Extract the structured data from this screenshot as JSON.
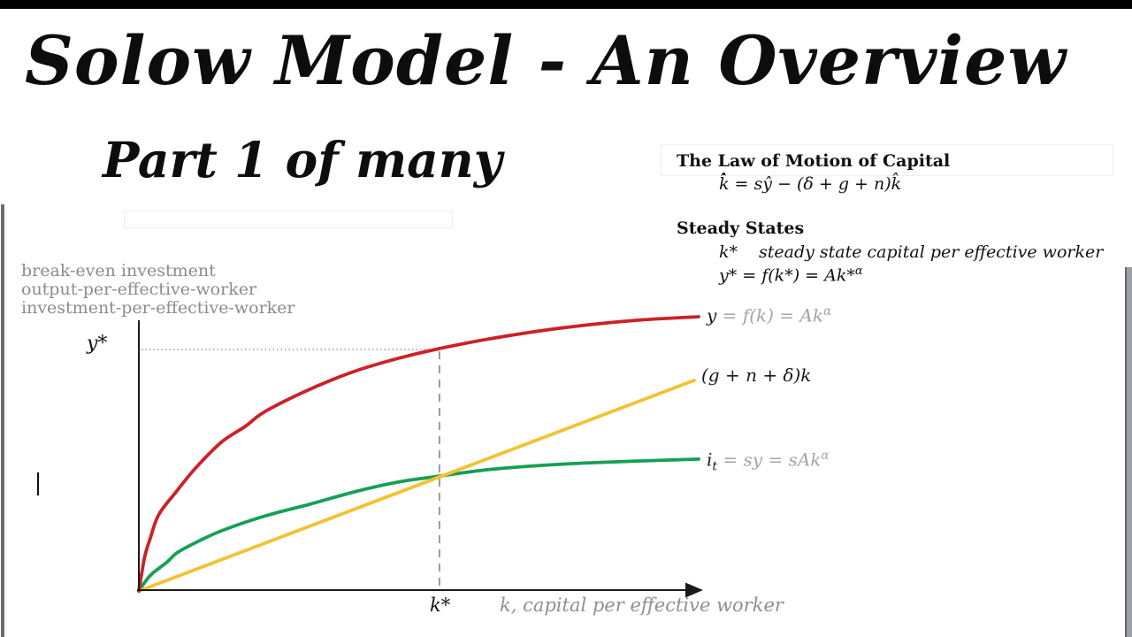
{
  "title": "Solow Model - An Overview",
  "subtitle": "Part 1 of many",
  "law_of_motion": {
    "heading": "The Law of Motion of Capital",
    "equation": "k̂̇ = sŷ − (δ + g + n)k̂"
  },
  "steady_states": {
    "heading": "Steady States",
    "line1_symbol": "k*",
    "line1_text": "steady state capital per effective worker",
    "line2_base": "y* = f(k*) = Ak*",
    "line2_sup": "α"
  },
  "chart": {
    "y_axis_labels": [
      "break-even investment",
      "output-per-effective-worker",
      "investment-per-effective-worker"
    ],
    "y_star_label": "y*",
    "k_star_label": "k*",
    "x_axis_label": "k,  capital per effective worker",
    "labels": {
      "red": {
        "sym": "y",
        "rest": " = f(k) = Ak",
        "sup": "α"
      },
      "yellow": {
        "text": "(g + n + δ)k"
      },
      "green": {
        "sym": "i",
        "sub": "t",
        "rest": " = sy = sAk",
        "sup": "α"
      }
    }
  },
  "chart_data": {
    "type": "line",
    "title": "",
    "xlabel": "k,  capital per effective worker",
    "ylabel_lines": [
      "break-even investment",
      "output-per-effective-worker",
      "investment-per-effective-worker"
    ],
    "axes_numeric": false,
    "x_range_normalized": [
      0,
      1
    ],
    "y_range_normalized": [
      0,
      1
    ],
    "grid": false,
    "legend_position": "labels at right ends of curves",
    "series": [
      {
        "id": "red",
        "name": "y = f(k) = Ak^α",
        "color": "#cc2127",
        "x": [
          0,
          0.01,
          0.02,
          0.036,
          0.068,
          0.1,
          0.147,
          0.19,
          0.226,
          0.305,
          0.384,
          0.463,
          0.537,
          0.637,
          0.763,
          0.889,
          1.0
        ],
        "y": [
          0,
          0.12,
          0.19,
          0.28,
          0.365,
          0.445,
          0.542,
          0.6,
          0.655,
          0.735,
          0.8,
          0.848,
          0.884,
          0.923,
          0.961,
          0.987,
          1.0
        ]
      },
      {
        "id": "yellow",
        "name": "(g + n + δ)k",
        "color": "#f1c232",
        "x": [
          0,
          0.992
        ],
        "y": [
          0,
          0.768
        ]
      },
      {
        "id": "green",
        "name": "i_t = sy = sAk^α",
        "color": "#16a055",
        "x": [
          0,
          0.01,
          0.023,
          0.05,
          0.068,
          0.1,
          0.147,
          0.226,
          0.305,
          0.384,
          0.463,
          0.537,
          0.637,
          0.779,
          1.0
        ],
        "y": [
          0,
          0.03,
          0.062,
          0.105,
          0.139,
          0.175,
          0.219,
          0.274,
          0.316,
          0.361,
          0.397,
          0.419,
          0.445,
          0.465,
          0.481
        ]
      }
    ],
    "markers": {
      "k_star_x": 0.537,
      "y_star_y": 0.884
    },
    "annotations": [
      {
        "text": "y*",
        "meaning": "steady-state output per effective worker, marked on y-axis with dotted guide"
      },
      {
        "text": "k*",
        "meaning": "steady-state capital per effective worker, marked on x-axis with dashed guide"
      }
    ]
  }
}
